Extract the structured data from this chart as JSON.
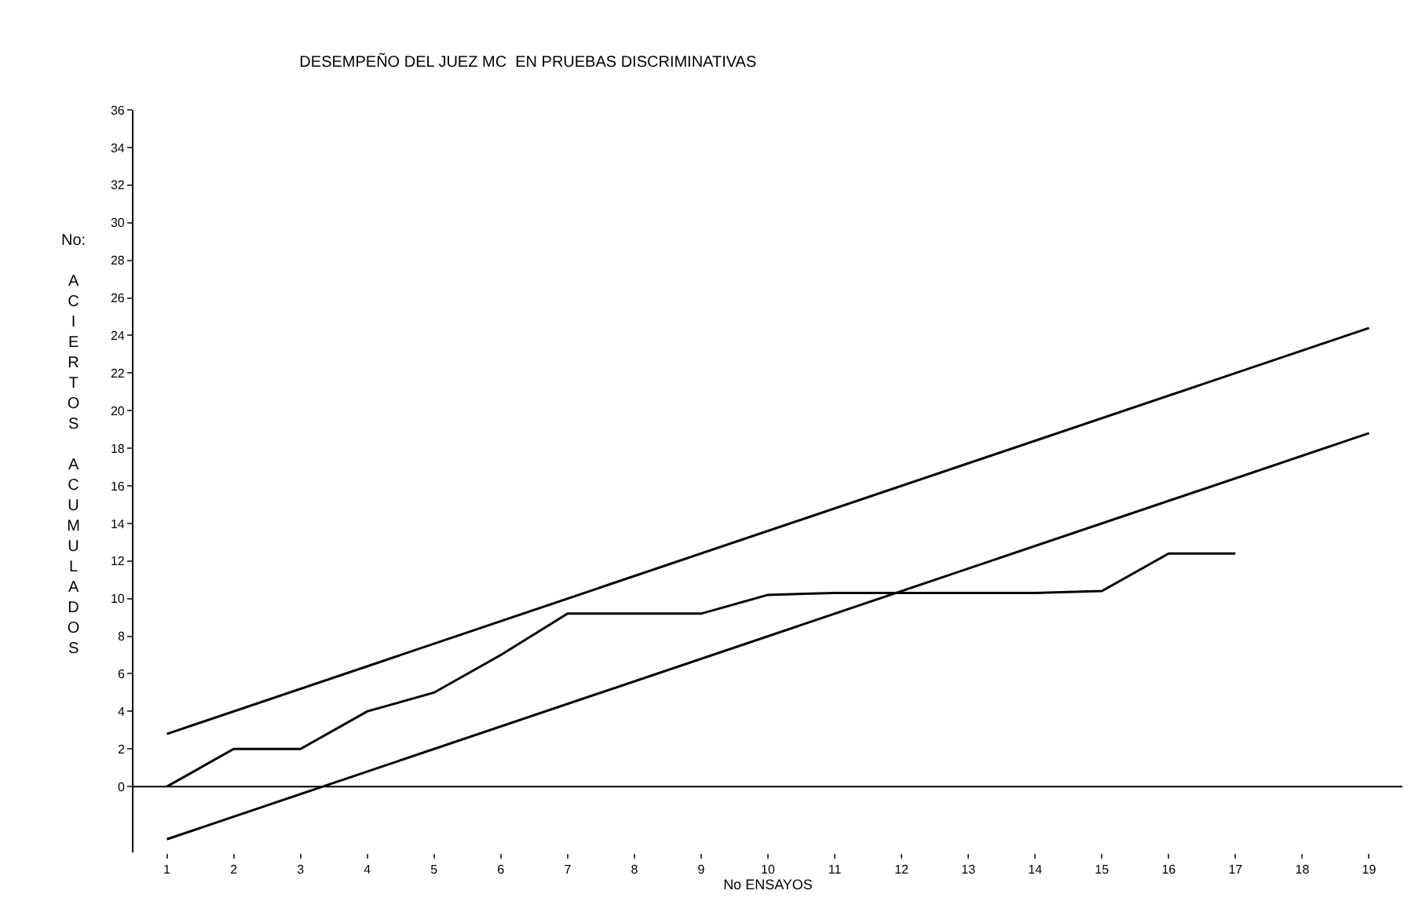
{
  "chart_data": {
    "type": "line",
    "title": "DESEMPEÑO DEL JUEZ MC  EN PRUEBAS DISCRIMINATIVAS",
    "xlabel": "No ENSAYOS",
    "ylabel": "No: ACIERTOS ACUMULADOS",
    "series": [
      {
        "color": "#000000",
        "x": [
          1,
          19
        ],
        "values": [
          2.8,
          24.4
        ]
      },
      {
        "color": "#000000",
        "x": [
          1,
          19
        ],
        "values": [
          -2.8,
          18.8
        ]
      },
      {
        "color": "#000000",
        "x": [
          1,
          2,
          3,
          4,
          5,
          6,
          7,
          8,
          9,
          10,
          11,
          12,
          13,
          14,
          15,
          16,
          17
        ],
        "values": [
          0,
          2,
          2,
          4,
          5,
          7,
          9.2,
          9.2,
          9.2,
          10.2,
          10.3,
          10.3,
          10.3,
          10.3,
          10.4,
          12.4,
          12.4
        ]
      }
    ],
    "xlim": [
      0.5,
      19.5
    ],
    "xticks": [
      1,
      2,
      3,
      4,
      5,
      6,
      7,
      8,
      9,
      10,
      11,
      12,
      13,
      14,
      15,
      16,
      17,
      18,
      19
    ],
    "ylim": [
      -3.5,
      36
    ],
    "yticks": [
      0,
      2,
      4,
      6,
      8,
      10,
      12,
      14,
      16,
      18,
      20,
      22,
      24,
      26,
      28,
      30,
      32,
      34,
      36
    ],
    "ref_lines": [
      {
        "axis": "y",
        "value": 0,
        "color": "#000000",
        "line_style": "solid"
      }
    ],
    "marker": "none",
    "line_style": "solid"
  }
}
